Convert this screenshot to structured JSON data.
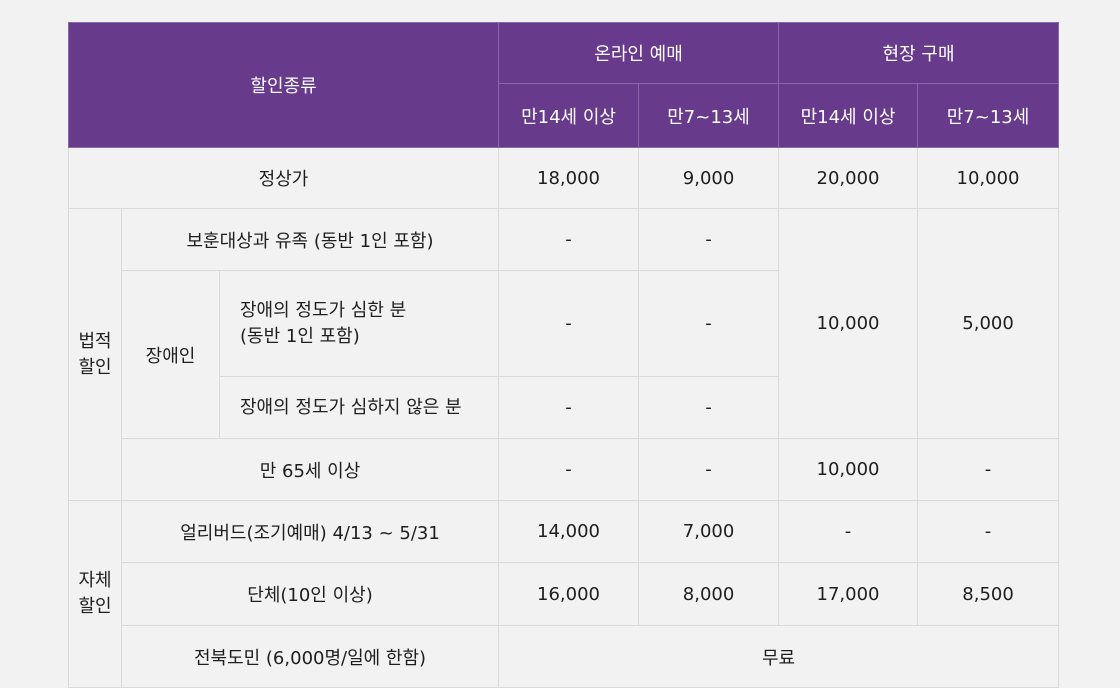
{
  "header": {
    "discount_type": "할인종류",
    "online": "온라인 예매",
    "onsite": "현장 구매",
    "age14": "만14세 이상",
    "age7_13": "만7~13세"
  },
  "rows": {
    "regular": {
      "label": "정상가",
      "v": [
        "18,000",
        "9,000",
        "20,000",
        "10,000"
      ]
    },
    "legal_group": {
      "line1": "법적",
      "line2": "할인"
    },
    "veterans": {
      "label": "보훈대상과 유족 (동반 1인 포함)",
      "v": [
        "-",
        "-"
      ]
    },
    "disabled": {
      "label": "장애인"
    },
    "severe": {
      "line1": "장애의 정도가 심한 분",
      "line2": "(동반 1인 포함)",
      "v": [
        "-",
        "-"
      ]
    },
    "mild": {
      "label": "장애의 정도가 심하지 않은 분",
      "v": [
        "-",
        "-"
      ]
    },
    "merged_onsite": {
      "v14": "10,000",
      "v7": "5,000"
    },
    "senior": {
      "label": "만 65세 이상",
      "v": [
        "-",
        "-",
        "10,000",
        "-"
      ]
    },
    "self_group": {
      "line1": "자체",
      "line2": "할인"
    },
    "earlybird": {
      "label": "얼리버드(조기예매) 4/13 ~ 5/31",
      "v": [
        "14,000",
        "7,000",
        "-",
        "-"
      ]
    },
    "group": {
      "label": "단체(10인 이상)",
      "v": [
        "16,000",
        "8,000",
        "17,000",
        "8,500"
      ]
    },
    "jeonbuk": {
      "label": "전북도민 (6,000명/일에 한함)",
      "v": "무료"
    }
  }
}
